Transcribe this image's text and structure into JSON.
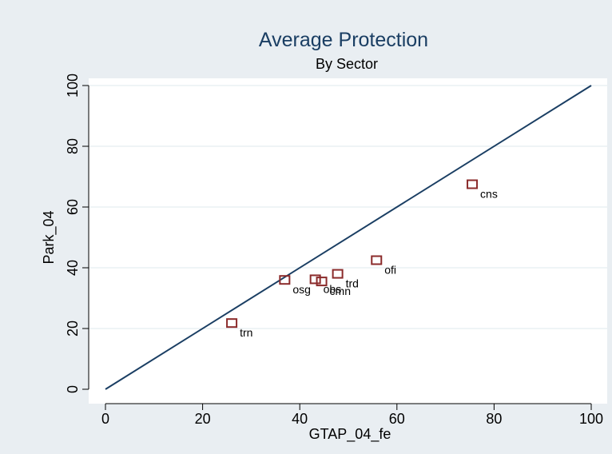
{
  "chart_data": {
    "type": "scatter",
    "title": "Average Protection",
    "subtitle": "By Sector",
    "xlabel": "GTAP_04_fe",
    "ylabel": "Park_04",
    "xlim": [
      0,
      100
    ],
    "ylim": [
      0,
      100
    ],
    "xticks": [
      0,
      20,
      40,
      60,
      80,
      100
    ],
    "yticks": [
      0,
      20,
      40,
      60,
      80,
      100
    ],
    "grid": true,
    "reference_line": {
      "type": "line",
      "x": [
        0,
        100
      ],
      "y": [
        0,
        100
      ]
    },
    "points": [
      {
        "label": "cns",
        "x": 75.5,
        "y": 67.5
      },
      {
        "label": "ofi",
        "x": 55.8,
        "y": 42.5
      },
      {
        "label": "trd",
        "x": 47.8,
        "y": 38.0
      },
      {
        "label": "osg",
        "x": 36.9,
        "y": 36.0
      },
      {
        "label": "obs",
        "x": 43.2,
        "y": 36.2
      },
      {
        "label": "cmn",
        "x": 44.5,
        "y": 35.5
      },
      {
        "label": "trn",
        "x": 26.0,
        "y": 21.8
      }
    ]
  },
  "colors": {
    "background": "#e9eef2",
    "plot_background": "#ffffff",
    "title": "#1a3e63",
    "line": "#1a3e63",
    "marker": "#8b2b2b",
    "grid": "#eaf0f4"
  }
}
